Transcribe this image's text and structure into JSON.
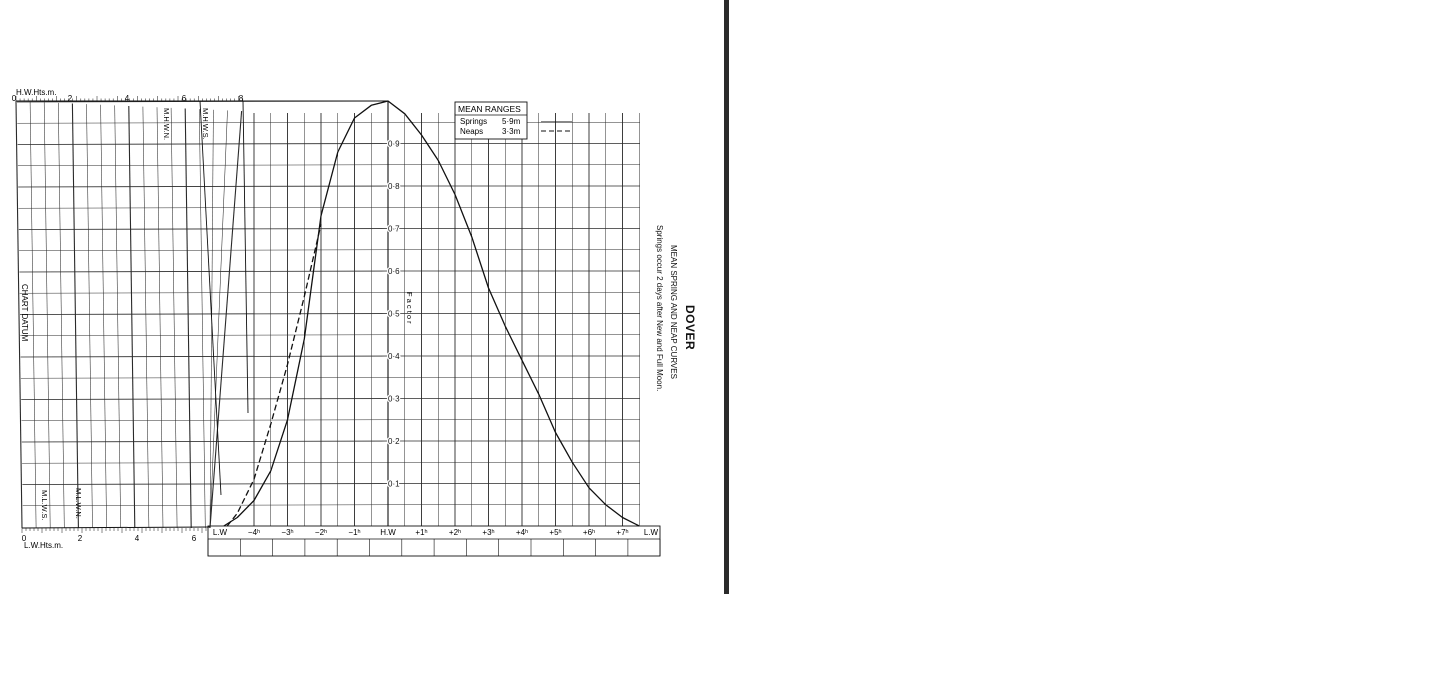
{
  "page": {
    "title": "DOVER",
    "subtitle": "MEAN SPRING AND NEAP CURVES",
    "note": "Springs occur 2 days after New and Full Moon."
  },
  "height_scale": {
    "hw_label": "H.W.Hts.m.",
    "lw_label": "L.W.Hts.m.",
    "ticks": [
      "0",
      "2",
      "4",
      "6",
      "8"
    ],
    "lw_ticks": [
      "0",
      "2",
      "4",
      "6"
    ],
    "marks": {
      "mhws": "M.H.W.S.",
      "mhwn": "M.H.W.N.",
      "mlwn": "M.L.W.N.",
      "mlws": "M.L.W.S."
    },
    "chart_datum": "CHART DATUM"
  },
  "factor_axis": {
    "label": "Factor",
    "ticks": [
      "0·1",
      "0·2",
      "0·3",
      "0·4",
      "0·5",
      "0·6",
      "0·7",
      "0·8",
      "0·9"
    ]
  },
  "time_axis": {
    "labels": [
      "L.W",
      "−4ʰ",
      "−3ʰ",
      "−2ʰ",
      "−1ʰ",
      "H.W",
      "+1ʰ",
      "+2ʰ",
      "+3ʰ",
      "+4ʰ",
      "+5ʰ",
      "+6ʰ",
      "+7ʰ",
      "L.W"
    ]
  },
  "legend": {
    "title": "MEAN RANGES",
    "springs_label": "Springs",
    "springs_value": "5·9m",
    "neaps_label": "Neaps",
    "neaps_value": "3·3m"
  },
  "chart_data": {
    "type": "line",
    "xlabel": "",
    "ylabel": "Factor",
    "x_unit": "hours relative to H.W",
    "ylim": [
      0,
      1
    ],
    "xlim": [
      -5.0,
      7.6
    ],
    "series": [
      {
        "name": "Springs",
        "style": "solid",
        "x": [
          -4.9,
          -4.5,
          -4.0,
          -3.5,
          -3.0,
          -2.5,
          -2.0,
          -1.5,
          -1.0,
          -0.5,
          0.0,
          0.5,
          1.0,
          1.5,
          2.0,
          2.5,
          3.0,
          3.5,
          4.0,
          4.5,
          5.0,
          5.5,
          6.0,
          6.5,
          7.0,
          7.5
        ],
        "y": [
          0.0,
          0.02,
          0.06,
          0.13,
          0.25,
          0.44,
          0.73,
          0.88,
          0.96,
          0.99,
          1.0,
          0.97,
          0.92,
          0.86,
          0.78,
          0.68,
          0.56,
          0.47,
          0.39,
          0.31,
          0.22,
          0.15,
          0.09,
          0.05,
          0.02,
          0.0
        ]
      },
      {
        "name": "Neaps",
        "style": "dashed",
        "x": [
          -4.8,
          -4.5,
          -4.0,
          -3.5,
          -3.0,
          -2.5,
          -2.0
        ],
        "y": [
          0.0,
          0.03,
          0.11,
          0.24,
          0.38,
          0.54,
          0.71
        ]
      }
    ]
  }
}
